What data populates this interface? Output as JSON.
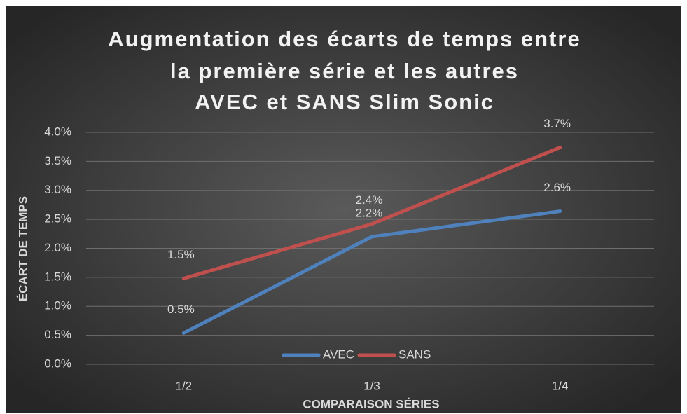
{
  "chart_data": {
    "type": "line",
    "title": [
      "Augmentation des écarts de temps entre",
      "la première série et les autres",
      "AVEC et SANS Slim Sonic"
    ],
    "x_label": "COMPARAISON SÉRIES",
    "y_label": "ÉCART DE TEMPS",
    "categories": [
      "1/2",
      "1/3",
      "1/4"
    ],
    "series": [
      {
        "name": "AVEC",
        "color": "#4f81bd",
        "values": [
          0.54,
          2.2,
          2.64
        ],
        "value_labels": [
          "0.5%",
          "2.2%",
          "2.6%"
        ]
      },
      {
        "name": "SANS",
        "color": "#c0504d",
        "values": [
          1.48,
          2.42,
          3.74
        ],
        "value_labels": [
          "1.5%",
          "2.4%",
          "3.7%"
        ]
      }
    ],
    "ylim": [
      0,
      4
    ],
    "yticks": [
      {
        "value": 0,
        "label": "0.0%"
      },
      {
        "value": 0.5,
        "label": "0.5%"
      },
      {
        "value": 1,
        "label": "1.0%"
      },
      {
        "value": 1.5,
        "label": "1.5%"
      },
      {
        "value": 2,
        "label": "2.0%"
      },
      {
        "value": 2.5,
        "label": "2.5%"
      },
      {
        "value": 3,
        "label": "3.0%"
      },
      {
        "value": 3.5,
        "label": "3.5%"
      },
      {
        "value": 4,
        "label": "4.0%"
      }
    ],
    "grid": true,
    "legend": "bottom"
  }
}
